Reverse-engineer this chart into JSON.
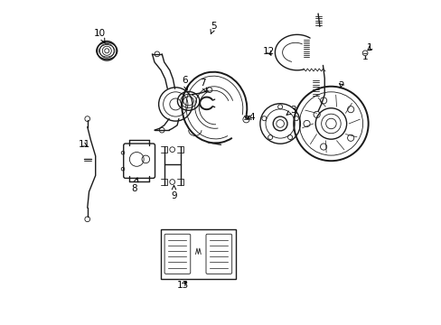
{
  "background_color": "#ffffff",
  "line_color": "#1a1a1a",
  "fig_width": 4.89,
  "fig_height": 3.6,
  "dpi": 100,
  "label_positions": {
    "1": [
      0.962,
      0.845,
      0.948,
      0.83
    ],
    "2": [
      0.87,
      0.735,
      0.858,
      0.75
    ],
    "3": [
      0.72,
      0.66,
      0.708,
      0.673
    ],
    "4": [
      0.59,
      0.63,
      0.578,
      0.643
    ],
    "5": [
      0.48,
      0.905,
      0.468,
      0.875
    ],
    "6": [
      0.39,
      0.75,
      0.4,
      0.72
    ],
    "7": [
      0.445,
      0.735,
      0.455,
      0.71
    ],
    "8": [
      0.235,
      0.42,
      0.248,
      0.445
    ],
    "9": [
      0.355,
      0.395,
      0.355,
      0.415
    ],
    "10": [
      0.13,
      0.895,
      0.148,
      0.862
    ],
    "11": [
      0.082,
      0.555,
      0.095,
      0.545
    ],
    "12": [
      0.65,
      0.84,
      0.663,
      0.82
    ],
    "13": [
      0.385,
      0.122,
      0.4,
      0.14
    ]
  }
}
